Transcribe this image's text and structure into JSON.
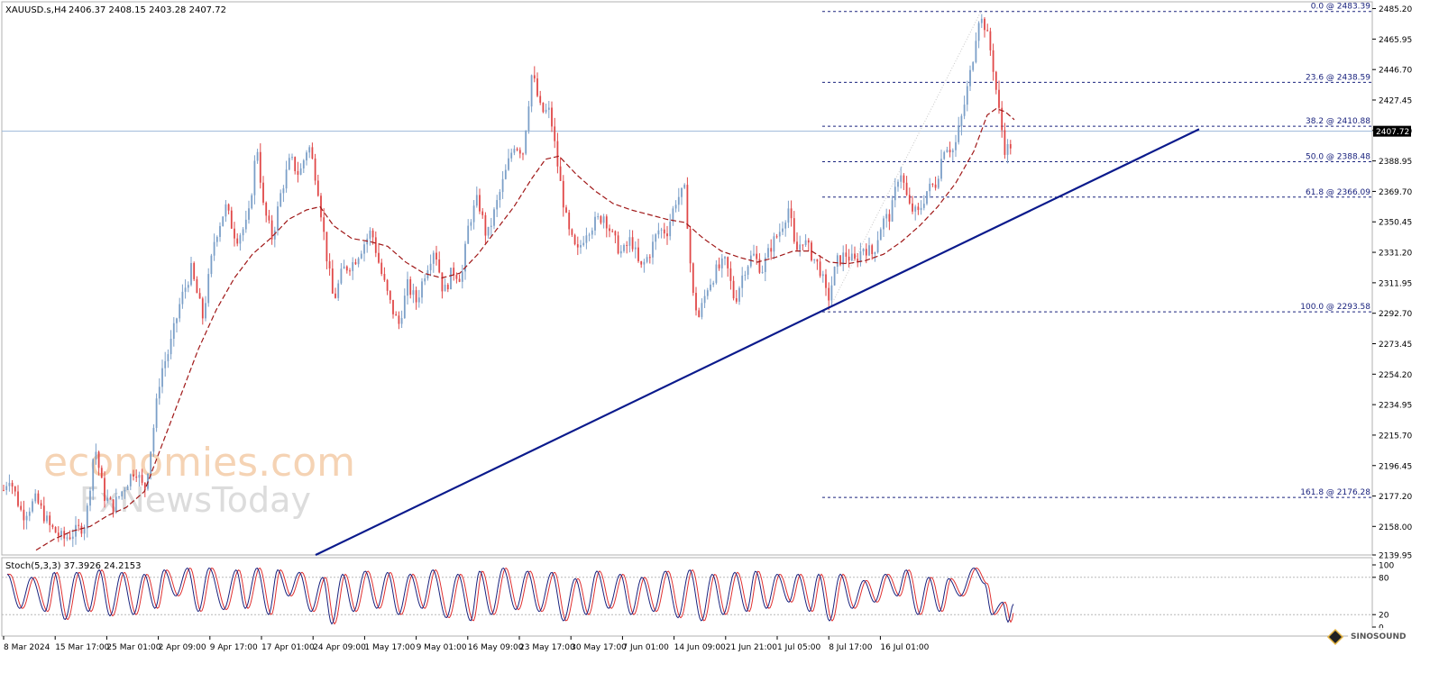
{
  "header": {
    "symbol": "XAUUSD.s,H4",
    "ohlc": "2406.37 2408.15 2403.28 2407.72"
  },
  "watermark": {
    "line1": "economies.com",
    "line2": "FxNewsToday"
  },
  "badge": {
    "text": "SINOSOUND"
  },
  "colors": {
    "bull": "#7b9fc8",
    "bear": "#e04848",
    "ma": "#a01818",
    "trendline": "#0a1a8c",
    "fib": "#1a237e",
    "price_line": "#9db8d8",
    "stoch_main": "#1a237e",
    "stoch_signal": "#e03030"
  },
  "chart_data": [
    {
      "type": "candlestick",
      "title": "XAUUSD.s,H4",
      "ylim": [
        2139.95,
        2489.5
      ],
      "y_ticks": [
        "2485.20",
        "2465.95",
        "2446.70",
        "2427.45",
        "2408.20",
        "2388.95",
        "2369.70",
        "2350.45",
        "2331.20",
        "2311.95",
        "2292.70",
        "2273.45",
        "2254.20",
        "2234.95",
        "2215.70",
        "2196.45",
        "2177.20",
        "2158.00",
        "2139.95"
      ],
      "x_labels": [
        "8 Mar 2024",
        "15 Mar 17:00",
        "25 Mar 01:00",
        "2 Apr 09:00",
        "9 Apr 17:00",
        "17 Apr 01:00",
        "24 Apr 09:00",
        "1 May 17:00",
        "9 May 01:00",
        "16 May 09:00",
        "23 May 17:00",
        "30 May 17:00",
        "7 Jun 01:00",
        "14 Jun 09:00",
        "21 Jun 21:00",
        "1 Jul 05:00",
        "8 Jul 17:00",
        "16 Jul 01:00"
      ],
      "last_price": "2407.72",
      "close_path": [
        [
          0,
          2175
        ],
        [
          10,
          2190
        ],
        [
          25,
          2165
        ],
        [
          40,
          2175
        ],
        [
          55,
          2158
        ],
        [
          70,
          2150
        ],
        [
          85,
          2155
        ],
        [
          95,
          2160
        ],
        [
          105,
          2210
        ],
        [
          115,
          2178
        ],
        [
          125,
          2170
        ],
        [
          140,
          2185
        ],
        [
          150,
          2195
        ],
        [
          160,
          2180
        ],
        [
          168,
          2210
        ],
        [
          178,
          2255
        ],
        [
          188,
          2270
        ],
        [
          200,
          2300
        ],
        [
          212,
          2320
        ],
        [
          225,
          2290
        ],
        [
          238,
          2340
        ],
        [
          250,
          2360
        ],
        [
          262,
          2340
        ],
        [
          275,
          2350
        ],
        [
          285,
          2400
        ],
        [
          292,
          2360
        ],
        [
          302,
          2340
        ],
        [
          312,
          2370
        ],
        [
          322,
          2390
        ],
        [
          332,
          2380
        ],
        [
          342,
          2400
        ],
        [
          352,
          2375
        ],
        [
          362,
          2330
        ],
        [
          370,
          2300
        ],
        [
          380,
          2320
        ],
        [
          392,
          2325
        ],
        [
          402,
          2335
        ],
        [
          412,
          2345
        ],
        [
          422,
          2320
        ],
        [
          432,
          2300
        ],
        [
          442,
          2285
        ],
        [
          452,
          2310
        ],
        [
          462,
          2300
        ],
        [
          472,
          2320
        ],
        [
          482,
          2335
        ],
        [
          492,
          2305
        ],
        [
          502,
          2320
        ],
        [
          512,
          2315
        ],
        [
          520,
          2350
        ],
        [
          530,
          2365
        ],
        [
          540,
          2340
        ],
        [
          550,
          2360
        ],
        [
          560,
          2380
        ],
        [
          570,
          2400
        ],
        [
          580,
          2395
        ],
        [
          590,
          2445
        ],
        [
          600,
          2420
        ],
        [
          610,
          2420
        ],
        [
          620,
          2380
        ],
        [
          630,
          2345
        ],
        [
          640,
          2330
        ],
        [
          650,
          2345
        ],
        [
          660,
          2350
        ],
        [
          670,
          2355
        ],
        [
          680,
          2340
        ],
        [
          690,
          2330
        ],
        [
          700,
          2340
        ],
        [
          710,
          2320
        ],
        [
          720,
          2330
        ],
        [
          730,
          2345
        ],
        [
          740,
          2345
        ],
        [
          750,
          2365
        ],
        [
          760,
          2370
        ],
        [
          768,
          2305
        ],
        [
          775,
          2290
        ],
        [
          785,
          2310
        ],
        [
          795,
          2320
        ],
        [
          805,
          2325
        ],
        [
          815,
          2300
        ],
        [
          825,
          2320
        ],
        [
          835,
          2330
        ],
        [
          845,
          2320
        ],
        [
          855,
          2335
        ],
        [
          865,
          2345
        ],
        [
          875,
          2360
        ],
        [
          882,
          2330
        ],
        [
          890,
          2340
        ],
        [
          900,
          2330
        ],
        [
          910,
          2320
        ],
        [
          918,
          2300
        ],
        [
          928,
          2325
        ],
        [
          938,
          2330
        ],
        [
          948,
          2325
        ],
        [
          958,
          2335
        ],
        [
          968,
          2330
        ],
        [
          978,
          2350
        ],
        [
          988,
          2355
        ],
        [
          998,
          2385
        ],
        [
          1008,
          2360
        ],
        [
          1018,
          2355
        ],
        [
          1028,
          2370
        ],
        [
          1038,
          2375
        ],
        [
          1048,
          2400
        ],
        [
          1058,
          2395
        ],
        [
          1068,
          2420
        ],
        [
          1078,
          2450
        ],
        [
          1085,
          2480
        ],
        [
          1092,
          2475
        ],
        [
          1100,
          2455
        ],
        [
          1108,
          2420
        ],
        [
          1115,
          2395
        ],
        [
          1122,
          2400
        ]
      ],
      "ma_path": [
        [
          40,
          2143
        ],
        [
          60,
          2150
        ],
        [
          80,
          2155
        ],
        [
          100,
          2158
        ],
        [
          120,
          2165
        ],
        [
          140,
          2170
        ],
        [
          160,
          2180
        ],
        [
          180,
          2210
        ],
        [
          200,
          2240
        ],
        [
          220,
          2270
        ],
        [
          240,
          2295
        ],
        [
          260,
          2315
        ],
        [
          280,
          2330
        ],
        [
          300,
          2340
        ],
        [
          320,
          2352
        ],
        [
          340,
          2358
        ],
        [
          355,
          2360
        ],
        [
          370,
          2348
        ],
        [
          390,
          2340
        ],
        [
          410,
          2338
        ],
        [
          430,
          2335
        ],
        [
          450,
          2325
        ],
        [
          470,
          2318
        ],
        [
          490,
          2315
        ],
        [
          510,
          2318
        ],
        [
          530,
          2330
        ],
        [
          550,
          2345
        ],
        [
          570,
          2360
        ],
        [
          590,
          2378
        ],
        [
          605,
          2390
        ],
        [
          620,
          2392
        ],
        [
          640,
          2380
        ],
        [
          660,
          2370
        ],
        [
          680,
          2362
        ],
        [
          700,
          2358
        ],
        [
          720,
          2355
        ],
        [
          740,
          2352
        ],
        [
          760,
          2350
        ],
        [
          780,
          2340
        ],
        [
          800,
          2332
        ],
        [
          820,
          2328
        ],
        [
          840,
          2325
        ],
        [
          860,
          2328
        ],
        [
          880,
          2332
        ],
        [
          900,
          2332
        ],
        [
          920,
          2325
        ],
        [
          940,
          2324
        ],
        [
          960,
          2326
        ],
        [
          980,
          2330
        ],
        [
          1000,
          2338
        ],
        [
          1020,
          2348
        ],
        [
          1040,
          2360
        ],
        [
          1060,
          2375
        ],
        [
          1080,
          2395
        ],
        [
          1095,
          2418
        ],
        [
          1105,
          2422
        ],
        [
          1115,
          2420
        ],
        [
          1125,
          2415
        ]
      ],
      "fib_levels": [
        {
          "label": "0.0 @ 2483.39",
          "value": 2483.39
        },
        {
          "label": "23.6 @ 2438.59",
          "value": 2438.59
        },
        {
          "label": "38.2 @ 2410.88",
          "value": 2410.88
        },
        {
          "label": "50.0 @ 2388.48",
          "value": 2388.48
        },
        {
          "label": "61.8 @ 2366.09",
          "value": 2366.09
        },
        {
          "label": "100.0 @ 2293.58",
          "value": 2293.58
        },
        {
          "label": "161.8 @ 2176.28",
          "value": 2176.28
        }
      ],
      "trendline": [
        [
          350,
          2139.95
        ],
        [
          1330,
          2409
        ]
      ]
    },
    {
      "type": "line",
      "title": "Stoch(5,3,3) 37.3926 24.2153",
      "ylim": [
        0,
        100
      ],
      "y_ticks": [
        "100",
        "80",
        "20",
        "0"
      ],
      "levels": [
        80,
        20
      ],
      "peaks": [
        [
          8,
          85
        ],
        [
          22,
          30
        ],
        [
          35,
          80
        ],
        [
          50,
          25
        ],
        [
          60,
          88
        ],
        [
          72,
          12
        ],
        [
          85,
          88
        ],
        [
          98,
          25
        ],
        [
          110,
          92
        ],
        [
          122,
          18
        ],
        [
          135,
          88
        ],
        [
          148,
          20
        ],
        [
          160,
          85
        ],
        [
          172,
          30
        ],
        [
          182,
          92
        ],
        [
          195,
          50
        ],
        [
          208,
          95
        ],
        [
          220,
          25
        ],
        [
          232,
          95
        ],
        [
          248,
          28
        ],
        [
          262,
          92
        ],
        [
          272,
          30
        ],
        [
          285,
          95
        ],
        [
          298,
          20
        ],
        [
          308,
          92
        ],
        [
          320,
          50
        ],
        [
          332,
          88
        ],
        [
          345,
          25
        ],
        [
          358,
          80
        ],
        [
          368,
          5
        ],
        [
          380,
          85
        ],
        [
          392,
          25
        ],
        [
          405,
          90
        ],
        [
          418,
          30
        ],
        [
          430,
          88
        ],
        [
          442,
          20
        ],
        [
          455,
          85
        ],
        [
          468,
          30
        ],
        [
          480,
          92
        ],
        [
          495,
          15
        ],
        [
          508,
          85
        ],
        [
          522,
          10
        ],
        [
          532,
          90
        ],
        [
          545,
          20
        ],
        [
          558,
          95
        ],
        [
          572,
          28
        ],
        [
          585,
          90
        ],
        [
          598,
          25
        ],
        [
          612,
          88
        ],
        [
          625,
          10
        ],
        [
          638,
          78
        ],
        [
          650,
          20
        ],
        [
          662,
          90
        ],
        [
          675,
          30
        ],
        [
          688,
          85
        ],
        [
          700,
          20
        ],
        [
          712,
          80
        ],
        [
          725,
          25
        ],
        [
          738,
          90
        ],
        [
          752,
          15
        ],
        [
          765,
          92
        ],
        [
          778,
          10
        ],
        [
          790,
          85
        ],
        [
          802,
          20
        ],
        [
          815,
          88
        ],
        [
          828,
          25
        ],
        [
          838,
          90
        ],
        [
          850,
          30
        ],
        [
          862,
          85
        ],
        [
          875,
          40
        ],
        [
          885,
          85
        ],
        [
          898,
          25
        ],
        [
          908,
          85
        ],
        [
          920,
          10
        ],
        [
          932,
          85
        ],
        [
          945,
          30
        ],
        [
          958,
          75
        ],
        [
          970,
          40
        ],
        [
          982,
          85
        ],
        [
          995,
          50
        ],
        [
          1005,
          92
        ],
        [
          1018,
          20
        ],
        [
          1030,
          80
        ],
        [
          1042,
          25
        ],
        [
          1052,
          78
        ],
        [
          1065,
          50
        ],
        [
          1080,
          95
        ],
        [
          1092,
          70
        ],
        [
          1100,
          20
        ],
        [
          1112,
          40
        ],
        [
          1118,
          8
        ],
        [
          1124,
          37
        ]
      ]
    }
  ]
}
